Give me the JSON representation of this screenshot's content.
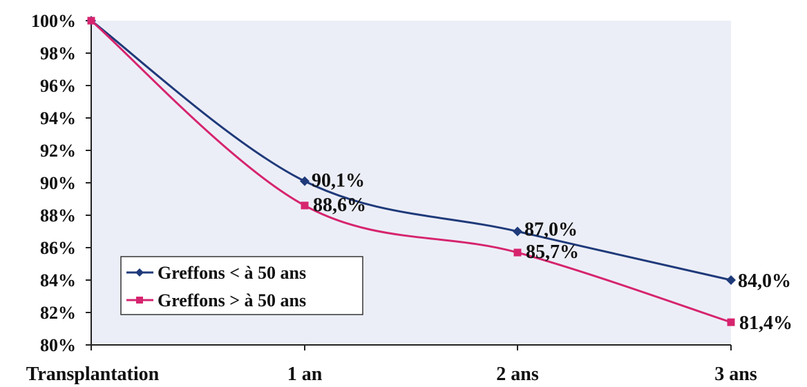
{
  "chart_data": {
    "type": "line",
    "categories": [
      "Transplantation",
      "1 an",
      "2 ans",
      "3 ans"
    ],
    "ylim": [
      80,
      100
    ],
    "yticks": [
      "100%",
      "98%",
      "96%",
      "94%",
      "92%",
      "90%",
      "88%",
      "86%",
      "84%",
      "82%",
      "80%"
    ],
    "series": [
      {
        "name": "Greffons < à 50 ans",
        "values": [
          100,
          90.1,
          87.0,
          84.0
        ],
        "labels": [
          "",
          "90,1%",
          "87,0%",
          "84,0%"
        ],
        "color": "#1f3a7a",
        "marker": "diamond"
      },
      {
        "name": "Greffons > à 50 ans",
        "values": [
          100,
          88.6,
          85.7,
          81.4
        ],
        "labels": [
          "",
          "88,6%",
          "85,7%",
          "81,4%"
        ],
        "color": "#d6246e",
        "marker": "square"
      }
    ],
    "legend": "inside-bottom-left",
    "plot_background": "#eceef7",
    "grid": false
  }
}
